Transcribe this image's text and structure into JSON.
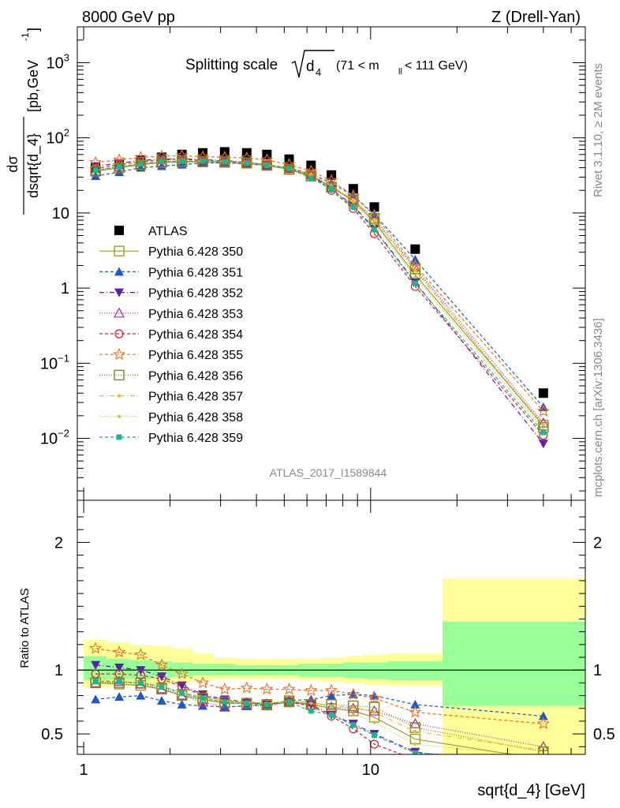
{
  "header": {
    "left": "8000 GeV pp",
    "right": "Z (Drell-Yan)"
  },
  "side_labels": {
    "top": "Rivet 3.1.10, ≥ 2M events",
    "bottom": "mcplots.cern.ch [arXiv:1306.3436]"
  },
  "watermark": "ATLAS_2017_I1589844",
  "chart_data": [
    {
      "type": "line",
      "panel": "main",
      "title_main": "Splitting scale",
      "title_sym": "d",
      "title_sub": "4",
      "title_cut": "(71 < m",
      "title_cut_sub": "ll",
      "title_cut_end": " < 111 GeV)",
      "ylabel_num": "dσ",
      "ylabel_den": "dsqrt{d_4}",
      "yunit": "[pb,GeV",
      "yunit_sup": "-1",
      "yunit_end": "]",
      "xscale": "log",
      "yscale": "log",
      "xlim": [
        0.95,
        56
      ],
      "ylim": [
        0.0015,
        3000
      ],
      "y_ticks": [
        {
          "v": 1000,
          "base": "10",
          "exp": "3"
        },
        {
          "v": 100,
          "base": "10",
          "exp": "2"
        },
        {
          "v": 10,
          "base": "10",
          "exp": ""
        },
        {
          "v": 1,
          "base": "1",
          "exp": ""
        },
        {
          "v": 0.1,
          "base": "10",
          "exp": "−1"
        },
        {
          "v": 0.01,
          "base": "10",
          "exp": "−2"
        }
      ],
      "x": [
        1.1,
        1.33,
        1.58,
        1.87,
        2.2,
        2.6,
        3.1,
        3.7,
        4.35,
        5.2,
        6.2,
        7.3,
        8.7,
        10.3,
        14.3,
        40.0
      ],
      "series": [
        {
          "name": "ATLAS",
          "color": "#000000",
          "marker": "square",
          "dash": "none",
          "values": [
            40,
            45,
            50,
            55,
            60,
            63,
            65,
            63,
            60,
            52,
            43,
            32,
            21,
            12,
            3.3,
            0.04
          ]
        },
        {
          "name": "Pythia 6.428 350",
          "color": "#a09830",
          "marker": "open-square",
          "dash": "solid",
          "values": [
            36,
            40,
            44,
            47,
            48,
            48,
            48,
            46,
            43,
            38,
            31,
            22,
            14.5,
            7.6,
            1.5,
            0.015
          ]
        },
        {
          "name": "Pythia 6.428 351",
          "color": "#1f58c4",
          "marker": "triangle-up",
          "dash": "4,3",
          "values": [
            31,
            35,
            40,
            42,
            44,
            46,
            47,
            45,
            43,
            40,
            33,
            25,
            17,
            9.6,
            2.4,
            0.026
          ]
        },
        {
          "name": "Pythia 6.428 352",
          "color": "#5522a8",
          "marker": "triangle-down",
          "dash": "6,3,1,3",
          "values": [
            42,
            46,
            50,
            52,
            53,
            51,
            50,
            47,
            44,
            39,
            32,
            21,
            12.5,
            6.2,
            1.2,
            0.0085
          ]
        },
        {
          "name": "Pythia 6.428 353",
          "color": "#b0289a",
          "marker": "open-triangle",
          "dash": "1,2",
          "values": [
            36,
            41,
            44,
            47,
            48,
            47,
            46,
            45,
            43,
            39,
            32,
            22,
            15,
            8.2,
            1.9,
            0.016
          ]
        },
        {
          "name": "Pythia 6.428 354",
          "color": "#d81e28",
          "marker": "open-circle",
          "dash": "4,3",
          "values": [
            39,
            44,
            48,
            51,
            52,
            50,
            49,
            47,
            44,
            39,
            31,
            20,
            11.5,
            5.3,
            1.05,
            0.011
          ]
        },
        {
          "name": "Pythia 6.428 355",
          "color": "#f07020",
          "marker": "open-star",
          "dash": "4,3",
          "values": [
            47,
            51,
            55,
            57,
            58,
            56,
            55,
            54,
            51,
            44,
            36,
            27,
            17,
            9.3,
            2.0,
            0.023
          ]
        },
        {
          "name": "Pythia 6.428 356",
          "color": "#7a8a18",
          "marker": "open-square",
          "dash": "1,2",
          "values": [
            36,
            40,
            44,
            47,
            48,
            48,
            48,
            46,
            43,
            38,
            31,
            22,
            15,
            8.5,
            1.8,
            0.014
          ]
        },
        {
          "name": "Pythia 6.428 357",
          "color": "#e8c018",
          "marker": "dot",
          "dash": "6,3,1,3",
          "values": [
            37,
            41,
            45,
            48,
            49,
            49,
            48,
            46,
            43,
            39,
            32,
            23,
            15,
            8.0,
            1.7,
            0.015
          ]
        },
        {
          "name": "Pythia 6.428 358",
          "color": "#b8c830",
          "marker": "dot",
          "dash": "1,2",
          "values": [
            37,
            42,
            46,
            49,
            50,
            50,
            49,
            47,
            44,
            40,
            33,
            23,
            14,
            7.0,
            1.4,
            0.013
          ]
        },
        {
          "name": "Pythia 6.428 359",
          "color": "#18b890",
          "marker": "filled-square",
          "dash": "4,3",
          "values": [
            37,
            41,
            45,
            48,
            49,
            49,
            48,
            46,
            43,
            39,
            29,
            21,
            12,
            6.0,
            1.15,
            0.012
          ]
        }
      ]
    },
    {
      "type": "line",
      "panel": "ratio",
      "ylabel": "Ratio to ATLAS",
      "xlabel": "sqrt{d_4} [GeV]",
      "xscale": "log",
      "xlim": [
        0.95,
        56
      ],
      "ylim": [
        0.34,
        2.33
      ],
      "y_ticks": [
        {
          "v": 2,
          "label": "2"
        },
        {
          "v": 1,
          "label": "1"
        },
        {
          "v": 0.5,
          "label": "0.5"
        }
      ],
      "x_ticks": [
        {
          "v": 1,
          "label": "1"
        },
        {
          "v": 10,
          "label": "10"
        }
      ],
      "bands": {
        "edges": [
          1.0,
          1.2,
          1.45,
          1.72,
          2.03,
          2.4,
          2.85,
          3.4,
          4.0,
          4.75,
          5.6,
          6.7,
          8.0,
          9.5,
          11.5,
          17.8,
          56
        ],
        "green_lo": [
          0.92,
          0.93,
          0.93,
          0.94,
          0.95,
          0.96,
          0.96,
          0.96,
          0.96,
          0.96,
          0.95,
          0.95,
          0.94,
          0.93,
          0.92,
          0.72
        ],
        "green_hi": [
          1.11,
          1.09,
          1.08,
          1.07,
          1.06,
          1.05,
          1.05,
          1.04,
          1.04,
          1.04,
          1.05,
          1.05,
          1.06,
          1.06,
          1.07,
          1.38
        ],
        "yellow_lo": [
          0.86,
          0.87,
          0.88,
          0.89,
          0.9,
          0.92,
          0.93,
          0.93,
          0.93,
          0.93,
          0.92,
          0.91,
          0.9,
          0.89,
          0.88,
          0.3
        ],
        "yellow_hi": [
          1.24,
          1.22,
          1.2,
          1.19,
          1.17,
          1.13,
          1.1,
          1.09,
          1.09,
          1.09,
          1.09,
          1.1,
          1.11,
          1.12,
          1.13,
          1.72
        ]
      },
      "series": [
        {
          "name": "Pythia 6.428 350",
          "values": [
            0.9,
            0.89,
            0.88,
            0.85,
            0.8,
            0.77,
            0.74,
            0.74,
            0.73,
            0.75,
            0.73,
            0.7,
            0.68,
            0.63,
            0.46,
            0.3
          ]
        },
        {
          "name": "Pythia 6.428 351",
          "values": [
            0.77,
            0.79,
            0.8,
            0.76,
            0.73,
            0.72,
            0.71,
            0.72,
            0.73,
            0.76,
            0.77,
            0.8,
            0.81,
            0.8,
            0.73,
            0.64
          ]
        },
        {
          "name": "Pythia 6.428 352",
          "values": [
            1.04,
            1.02,
            1.0,
            0.95,
            0.88,
            0.81,
            0.77,
            0.75,
            0.73,
            0.75,
            0.73,
            0.65,
            0.58,
            0.5,
            0.36,
            0.21
          ]
        },
        {
          "name": "Pythia 6.428 353",
          "values": [
            0.9,
            0.91,
            0.89,
            0.85,
            0.8,
            0.75,
            0.71,
            0.72,
            0.72,
            0.75,
            0.75,
            0.71,
            0.7,
            0.68,
            0.58,
            0.4
          ]
        },
        {
          "name": "Pythia 6.428 354",
          "values": [
            0.97,
            0.97,
            0.96,
            0.93,
            0.87,
            0.8,
            0.76,
            0.75,
            0.74,
            0.75,
            0.72,
            0.64,
            0.54,
            0.42,
            0.3,
            0.25
          ]
        },
        {
          "name": "Pythia 6.428 355",
          "values": [
            1.17,
            1.14,
            1.12,
            1.04,
            0.97,
            0.9,
            0.85,
            0.86,
            0.85,
            0.85,
            0.84,
            0.84,
            0.81,
            0.78,
            0.67,
            0.58
          ]
        },
        {
          "name": "Pythia 6.428 356",
          "values": [
            0.9,
            0.9,
            0.9,
            0.86,
            0.81,
            0.78,
            0.75,
            0.74,
            0.73,
            0.76,
            0.73,
            0.73,
            0.72,
            0.71,
            0.55,
            0.36
          ]
        },
        {
          "name": "Pythia 6.428 357",
          "values": [
            0.92,
            0.91,
            0.9,
            0.87,
            0.82,
            0.79,
            0.76,
            0.75,
            0.74,
            0.75,
            0.74,
            0.72,
            0.71,
            0.67,
            0.52,
            0.37
          ]
        },
        {
          "name": "Pythia 6.428 358",
          "values": [
            0.92,
            0.92,
            0.91,
            0.88,
            0.83,
            0.79,
            0.76,
            0.75,
            0.74,
            0.76,
            0.74,
            0.72,
            0.66,
            0.59,
            0.42,
            0.32
          ]
        },
        {
          "name": "Pythia 6.428 359",
          "values": [
            0.91,
            0.91,
            0.9,
            0.87,
            0.82,
            0.78,
            0.75,
            0.74,
            0.73,
            0.75,
            0.68,
            0.65,
            0.57,
            0.49,
            0.35,
            0.3
          ]
        }
      ]
    }
  ]
}
